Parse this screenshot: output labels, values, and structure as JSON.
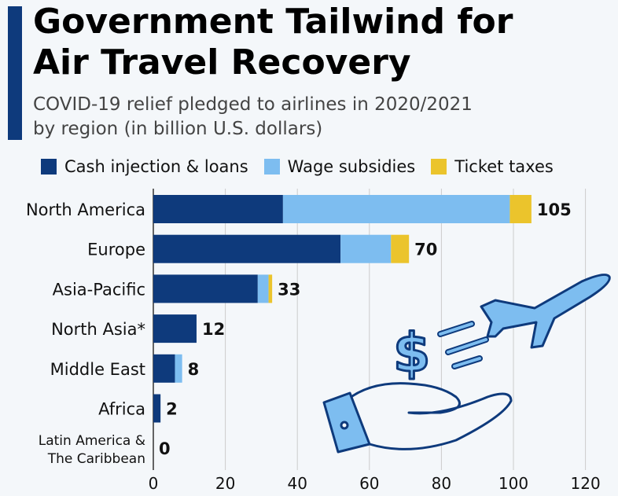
{
  "header": {
    "title_line1": "Government Tailwind for",
    "title_line2": "Air Travel Recovery",
    "subtitle_line1": "COVID-19 relief pledged to airlines in 2020/2021",
    "subtitle_line2": "by region (in billion U.S. dollars)"
  },
  "colors": {
    "accent": "#0e3a7c",
    "cash": "#0e3a7c",
    "wage": "#7dbdf0",
    "ticket": "#ebc42c"
  },
  "illustration_icons": [
    "airplane-icon",
    "dollar-icon",
    "hand-icon"
  ],
  "chart_data": {
    "type": "bar",
    "orientation": "horizontal",
    "stacked": true,
    "title": "Government Tailwind for Air Travel Recovery",
    "subtitle": "COVID-19 relief pledged to airlines in 2020/2021 by region (in billion U.S. dollars)",
    "categories": [
      "North America",
      "Europe",
      "Asia-Pacific",
      "North Asia*",
      "Middle East",
      "Africa",
      "Latin America & The Caribbean"
    ],
    "series": [
      {
        "name": "Cash injection & loans",
        "color": "#0e3a7c",
        "values": [
          36,
          52,
          29,
          12,
          6,
          2,
          0
        ]
      },
      {
        "name": "Wage subsidies",
        "color": "#7dbdf0",
        "values": [
          63,
          14,
          3,
          0,
          2,
          0,
          0
        ]
      },
      {
        "name": "Ticket taxes",
        "color": "#ebc42c",
        "values": [
          6,
          5,
          1,
          0,
          0,
          0,
          0
        ]
      }
    ],
    "totals": [
      "105",
      "70",
      "33",
      "12",
      "8",
      "2",
      "0"
    ],
    "xlim": [
      0,
      125
    ],
    "xticks": [
      0,
      20,
      40,
      60,
      80,
      100,
      120
    ],
    "grid": true,
    "legend": "top"
  }
}
